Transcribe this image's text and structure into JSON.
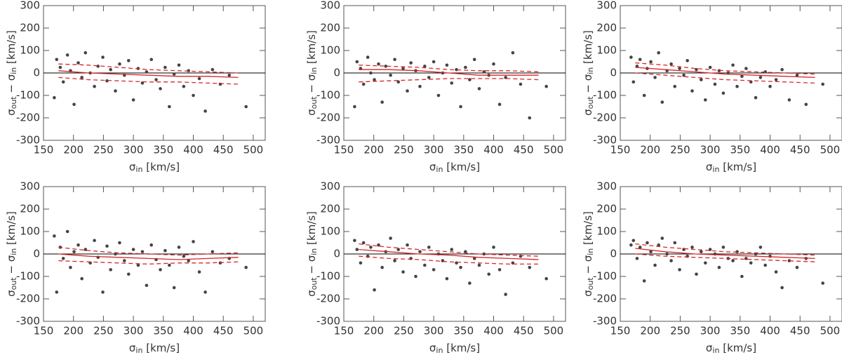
{
  "chart_data": [
    {
      "type": "scatter",
      "xlabel": [
        "σ",
        "in",
        " [km/s]"
      ],
      "ylabel": [
        "σ",
        "out",
        " − σ",
        "in",
        " [km/s]"
      ],
      "xlim": [
        150,
        520
      ],
      "ylim": [
        -300,
        300
      ],
      "xticks": [
        150,
        200,
        250,
        300,
        350,
        400,
        450,
        500
      ],
      "yticks": [
        -300,
        -200,
        -100,
        0,
        100,
        200,
        300
      ],
      "color": "#444444",
      "x": [
        168,
        172,
        178,
        183,
        190,
        195,
        201,
        208,
        214,
        220,
        228,
        235,
        241,
        249,
        256,
        262,
        270,
        277,
        285,
        292,
        300,
        308,
        315,
        322,
        330,
        338,
        345,
        353,
        360,
        368,
        376,
        384,
        392,
        400,
        410,
        420,
        432,
        445,
        460,
        488
      ],
      "values": [
        -110,
        60,
        25,
        -40,
        80,
        10,
        -140,
        45,
        -20,
        90,
        0,
        -60,
        30,
        70,
        -35,
        15,
        -80,
        40,
        -10,
        55,
        -120,
        20,
        -45,
        5,
        60,
        -30,
        -70,
        25,
        -150,
        -5,
        35,
        -60,
        10,
        -100,
        -25,
        -170,
        15,
        -50,
        -10,
        -150
      ],
      "lines": [
        {
          "style": "solid",
          "color": "#d62728",
          "x": [
            175,
            225,
            275,
            325,
            375,
            425,
            475
          ],
          "values": [
            10,
            0,
            -5,
            -10,
            -15,
            -15,
            -20
          ]
        },
        {
          "style": "dashed",
          "color": "#d62728",
          "x": [
            175,
            225,
            275,
            325,
            375,
            425,
            475
          ],
          "values": [
            40,
            35,
            25,
            15,
            10,
            5,
            0
          ]
        },
        {
          "style": "dashed",
          "color": "#d62728",
          "x": [
            175,
            225,
            275,
            325,
            375,
            425,
            475
          ],
          "values": [
            -20,
            -30,
            -35,
            -40,
            -40,
            -45,
            -50
          ]
        }
      ]
    },
    {
      "type": "scatter",
      "xlabel": [
        "σ",
        "in",
        " [km/s]"
      ],
      "ylabel": [
        "σ",
        "out",
        " − σ",
        "in",
        " [km/s]"
      ],
      "xlim": [
        150,
        520
      ],
      "ylim": [
        -300,
        300
      ],
      "xticks": [
        150,
        200,
        250,
        300,
        350,
        400,
        450,
        500
      ],
      "yticks": [
        -300,
        -200,
        -100,
        0,
        100,
        200,
        300
      ],
      "color": "#444444",
      "x": [
        168,
        172,
        178,
        183,
        190,
        195,
        201,
        208,
        214,
        220,
        228,
        235,
        241,
        249,
        256,
        262,
        270,
        277,
        285,
        292,
        300,
        308,
        315,
        322,
        330,
        338,
        345,
        353,
        360,
        368,
        376,
        384,
        392,
        400,
        410,
        420,
        432,
        445,
        460,
        488
      ],
      "values": [
        -150,
        50,
        20,
        -50,
        70,
        0,
        -30,
        40,
        -130,
        30,
        -10,
        60,
        -40,
        20,
        -80,
        45,
        10,
        -60,
        30,
        -20,
        50,
        -100,
        0,
        35,
        -45,
        15,
        -150,
        25,
        -30,
        60,
        -70,
        5,
        -10,
        40,
        -140,
        -20,
        90,
        -50,
        -200,
        -60
      ],
      "lines": [
        {
          "style": "solid",
          "color": "#d62728",
          "x": [
            175,
            225,
            275,
            325,
            375,
            425,
            475
          ],
          "values": [
            15,
            15,
            10,
            0,
            -10,
            -10,
            -10
          ]
        },
        {
          "style": "dashed",
          "color": "#d62728",
          "x": [
            175,
            225,
            275,
            325,
            375,
            425,
            475
          ],
          "values": [
            35,
            30,
            25,
            15,
            10,
            10,
            5
          ]
        },
        {
          "style": "dashed",
          "color": "#d62728",
          "x": [
            175,
            225,
            275,
            325,
            375,
            425,
            475
          ],
          "values": [
            -40,
            -35,
            -30,
            -25,
            -25,
            -25,
            -30
          ]
        }
      ]
    },
    {
      "type": "scatter",
      "xlabel": [
        "σ",
        "in",
        " [km/s]"
      ],
      "ylabel": [
        "σ",
        "out",
        " − σ",
        "in",
        " [km/s]"
      ],
      "xlim": [
        150,
        520
      ],
      "ylim": [
        -300,
        300
      ],
      "xticks": [
        150,
        200,
        250,
        300,
        350,
        400,
        450,
        500
      ],
      "yticks": [
        -300,
        -200,
        -100,
        0,
        100,
        200,
        300
      ],
      "color": "#444444",
      "x": [
        168,
        172,
        178,
        183,
        190,
        195,
        201,
        208,
        214,
        220,
        228,
        235,
        241,
        249,
        256,
        262,
        270,
        277,
        285,
        292,
        300,
        308,
        315,
        322,
        330,
        338,
        345,
        353,
        360,
        368,
        376,
        384,
        392,
        400,
        410,
        420,
        432,
        445,
        460,
        488
      ],
      "values": [
        70,
        -40,
        30,
        60,
        -100,
        20,
        50,
        -20,
        90,
        -130,
        10,
        40,
        -60,
        20,
        -10,
        55,
        -80,
        15,
        -30,
        -120,
        25,
        -50,
        10,
        -90,
        0,
        35,
        -60,
        -15,
        20,
        -40,
        -110,
        -20,
        5,
        -60,
        -30,
        15,
        -120,
        -10,
        -140,
        -50
      ],
      "lines": [
        {
          "style": "solid",
          "color": "#d62728",
          "x": [
            175,
            225,
            275,
            325,
            375,
            425,
            475
          ],
          "values": [
            25,
            15,
            5,
            -5,
            -10,
            -15,
            -20
          ]
        },
        {
          "style": "dashed",
          "color": "#d62728",
          "x": [
            175,
            225,
            275,
            325,
            375,
            425,
            475
          ],
          "values": [
            45,
            35,
            20,
            10,
            5,
            0,
            -5
          ]
        },
        {
          "style": "dashed",
          "color": "#d62728",
          "x": [
            175,
            225,
            275,
            325,
            375,
            425,
            475
          ],
          "values": [
            0,
            -10,
            -20,
            -30,
            -35,
            -40,
            -45
          ]
        }
      ]
    },
    {
      "type": "scatter",
      "xlabel": [
        "σ",
        "in",
        " [km/s]"
      ],
      "ylabel": [
        "σ",
        "out",
        " − σ",
        "in",
        " [km/s]"
      ],
      "xlim": [
        150,
        520
      ],
      "ylim": [
        -300,
        300
      ],
      "xticks": [
        150,
        200,
        250,
        300,
        350,
        400,
        450,
        500
      ],
      "yticks": [
        -300,
        -200,
        -100,
        0,
        100,
        200,
        300
      ],
      "color": "#444444",
      "x": [
        168,
        172,
        178,
        183,
        190,
        195,
        201,
        208,
        214,
        220,
        228,
        235,
        241,
        249,
        256,
        262,
        270,
        277,
        285,
        292,
        300,
        308,
        315,
        322,
        330,
        338,
        345,
        353,
        360,
        368,
        376,
        384,
        392,
        400,
        410,
        420,
        432,
        445,
        460,
        488
      ],
      "values": [
        80,
        -170,
        30,
        -20,
        100,
        -60,
        10,
        40,
        -110,
        20,
        -40,
        60,
        -15,
        -170,
        35,
        -70,
        0,
        50,
        -30,
        -90,
        20,
        -50,
        10,
        -140,
        40,
        -25,
        -70,
        15,
        -50,
        -150,
        30,
        -10,
        -30,
        55,
        -80,
        -170,
        10,
        -40,
        -20,
        -60
      ],
      "lines": [
        {
          "style": "solid",
          "color": "#d62728",
          "x": [
            175,
            225,
            275,
            325,
            375,
            425,
            475
          ],
          "values": [
            0,
            -10,
            -15,
            -20,
            -25,
            -20,
            -15
          ]
        },
        {
          "style": "dashed",
          "color": "#d62728",
          "x": [
            175,
            225,
            275,
            325,
            375,
            425,
            475
          ],
          "values": [
            30,
            15,
            5,
            0,
            -5,
            0,
            5
          ]
        },
        {
          "style": "dashed",
          "color": "#d62728",
          "x": [
            175,
            225,
            275,
            325,
            375,
            425,
            475
          ],
          "values": [
            -30,
            -35,
            -40,
            -45,
            -40,
            -40,
            -35
          ]
        }
      ]
    },
    {
      "type": "scatter",
      "xlabel": [
        "σ",
        "in",
        " [km/s]"
      ],
      "ylabel": [
        "σ",
        "out",
        " − σ",
        "in",
        " [km/s]"
      ],
      "xlim": [
        150,
        520
      ],
      "ylim": [
        -300,
        300
      ],
      "xticks": [
        150,
        200,
        250,
        300,
        350,
        400,
        450,
        500
      ],
      "yticks": [
        -300,
        -200,
        -100,
        0,
        100,
        200,
        300
      ],
      "color": "#444444",
      "x": [
        168,
        172,
        178,
        183,
        190,
        195,
        201,
        208,
        214,
        220,
        228,
        235,
        241,
        249,
        256,
        262,
        270,
        277,
        285,
        292,
        300,
        308,
        315,
        322,
        330,
        338,
        345,
        353,
        360,
        368,
        376,
        384,
        392,
        400,
        410,
        420,
        432,
        445,
        460,
        488
      ],
      "values": [
        60,
        20,
        -40,
        50,
        -10,
        30,
        -160,
        40,
        -60,
        10,
        70,
        -30,
        20,
        -80,
        40,
        -20,
        -100,
        10,
        -50,
        30,
        -70,
        0,
        -30,
        -110,
        20,
        -40,
        -60,
        10,
        -130,
        -20,
        -50,
        0,
        -90,
        30,
        -70,
        -180,
        -40,
        -10,
        -60,
        -110
      ],
      "lines": [
        {
          "style": "solid",
          "color": "#d62728",
          "x": [
            175,
            225,
            275,
            325,
            375,
            425,
            475
          ],
          "values": [
            20,
            10,
            0,
            -5,
            -15,
            -20,
            -25
          ]
        },
        {
          "style": "dashed",
          "color": "#d62728",
          "x": [
            175,
            225,
            275,
            325,
            375,
            425,
            475
          ],
          "values": [
            45,
            30,
            20,
            10,
            0,
            -5,
            -10
          ]
        },
        {
          "style": "dashed",
          "color": "#d62728",
          "x": [
            175,
            225,
            275,
            325,
            375,
            425,
            475
          ],
          "values": [
            -10,
            -20,
            -25,
            -35,
            -40,
            -45,
            -45
          ]
        }
      ]
    },
    {
      "type": "scatter",
      "xlabel": [
        "σ",
        "in",
        " [km/s]"
      ],
      "ylabel": [
        "σ",
        "out",
        " − σ",
        "in",
        " [km/s]"
      ],
      "xlim": [
        150,
        520
      ],
      "ylim": [
        -300,
        300
      ],
      "xticks": [
        150,
        200,
        250,
        300,
        350,
        400,
        450,
        500
      ],
      "yticks": [
        -300,
        -200,
        -100,
        0,
        100,
        200,
        300
      ],
      "color": "#444444",
      "x": [
        168,
        172,
        178,
        183,
        190,
        195,
        201,
        208,
        214,
        220,
        228,
        235,
        241,
        249,
        256,
        262,
        270,
        277,
        285,
        292,
        300,
        308,
        315,
        322,
        330,
        338,
        345,
        353,
        360,
        368,
        376,
        384,
        392,
        400,
        410,
        420,
        432,
        445,
        460,
        488
      ],
      "values": [
        40,
        60,
        -20,
        30,
        -120,
        50,
        10,
        -50,
        40,
        70,
        0,
        -30,
        50,
        -70,
        20,
        -10,
        30,
        -90,
        10,
        -40,
        20,
        0,
        -60,
        30,
        -20,
        -30,
        10,
        -100,
        -20,
        -40,
        0,
        30,
        -50,
        -10,
        -80,
        -150,
        -30,
        -60,
        -20,
        -130
      ],
      "lines": [
        {
          "style": "solid",
          "color": "#d62728",
          "x": [
            175,
            225,
            275,
            325,
            375,
            425,
            475
          ],
          "values": [
            25,
            10,
            0,
            -5,
            -10,
            -15,
            -20
          ]
        },
        {
          "style": "dashed",
          "color": "#d62728",
          "x": [
            175,
            225,
            275,
            325,
            375,
            425,
            475
          ],
          "values": [
            45,
            30,
            20,
            10,
            5,
            0,
            -5
          ]
        },
        {
          "style": "dashed",
          "color": "#d62728",
          "x": [
            175,
            225,
            275,
            325,
            375,
            425,
            475
          ],
          "values": [
            0,
            -10,
            -15,
            -20,
            -25,
            -30,
            -35
          ]
        }
      ]
    }
  ]
}
